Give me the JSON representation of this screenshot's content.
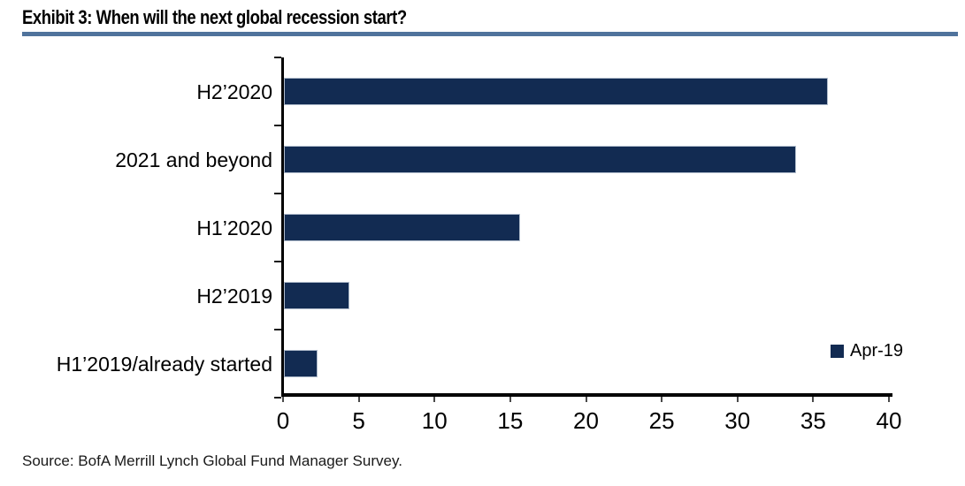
{
  "header": {
    "title": "Exhibit 3: When will the next global recession start?"
  },
  "chart_data": {
    "type": "bar",
    "orientation": "horizontal",
    "title": "Exhibit 3: When will the next global recession start?",
    "categories": [
      "H2’2020",
      "2021 and beyond",
      "H1’2020",
      "H2’2019",
      "H1’2019/already started"
    ],
    "series": [
      {
        "name": "Apr-19",
        "values": [
          35.9,
          33.8,
          15.6,
          4.3,
          2.2
        ]
      }
    ],
    "xlabel": "",
    "ylabel": "",
    "xlim": [
      0,
      40
    ],
    "x_ticks": [
      0,
      5,
      10,
      15,
      20,
      25,
      30,
      35,
      40
    ],
    "grid": false,
    "legend_position": "right-bottom"
  },
  "footer": {
    "source": "Source: BofA Merrill Lynch Global Fund Manager Survey."
  },
  "colors": {
    "bar": "#122B52",
    "title_underline": "#50739C",
    "axis": "#000000"
  }
}
